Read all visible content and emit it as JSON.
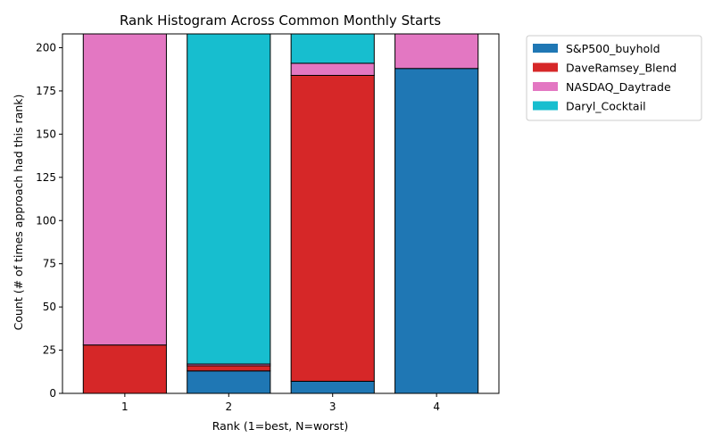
{
  "chart_data": {
    "type": "bar",
    "stacked": true,
    "title": "Rank Histogram Across Common Monthly Starts",
    "xlabel": "Rank (1=best, N=worst)",
    "ylabel": "Count (# of times approach had this rank)",
    "categories": [
      "1",
      "2",
      "3",
      "4"
    ],
    "ylim": [
      0,
      208
    ],
    "yticks": [
      0,
      25,
      50,
      75,
      100,
      125,
      150,
      175,
      200
    ],
    "grid": false,
    "legend_position": "outside-top-right",
    "series": [
      {
        "name": "S&P500_buyhold",
        "color": "#1f77b4",
        "values": [
          0,
          13,
          7,
          188
        ]
      },
      {
        "name": "DaveRamsey_Blend",
        "color": "#d62728",
        "values": [
          28,
          3,
          177,
          0
        ]
      },
      {
        "name": "NASDAQ_Daytrade",
        "color": "#e377c2",
        "values": [
          180,
          1,
          7,
          20
        ]
      },
      {
        "name": "Daryl_Cocktail",
        "color": "#17becf",
        "values": [
          0,
          191,
          17,
          0
        ]
      }
    ]
  }
}
